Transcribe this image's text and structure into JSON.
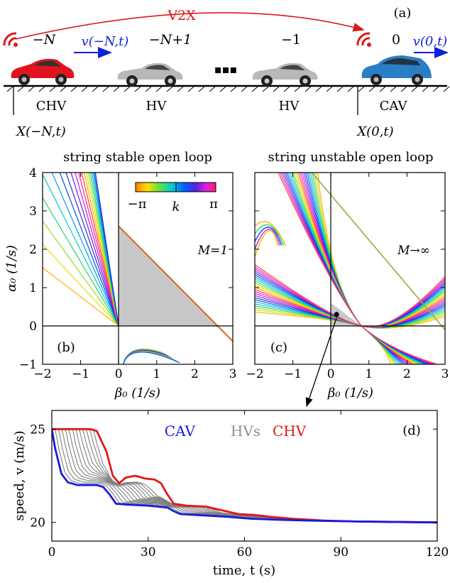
{
  "panel_a": {
    "label": "(a)",
    "v2x": "V2X",
    "vehicle_indices": [
      "−N",
      "−N+1",
      "−1",
      "0"
    ],
    "speed_left": "v(−N,t)",
    "speed_right": "v(0,t)",
    "types": [
      "CHV",
      "HV",
      "HV",
      "CAV"
    ],
    "pos_left": "X(−N,t)",
    "pos_right": "X(0,t)",
    "dots": "▪▪▪",
    "colors": {
      "chv": "#e0141e",
      "hv": "#a8a8a8",
      "cav": "#2a7ec6",
      "arrow": "#1020e0",
      "v2x": "#e01818"
    }
  },
  "panel_b": {
    "title": "string stable open loop",
    "label": "(b)",
    "annotation": "M=1",
    "colorbar": {
      "min": "−π",
      "mid": "k",
      "max": "π"
    },
    "xlabel": "β₀ (1/s)",
    "ylabel": "α₀ (1/s)",
    "xticks": [
      "−2",
      "−1",
      "0",
      "1",
      "2",
      "3"
    ],
    "yticks": [
      "−1",
      "0",
      "1",
      "2",
      "3",
      "4"
    ]
  },
  "panel_c": {
    "title": "string unstable open loop",
    "label": "(c)",
    "annotation": "M→∞",
    "xlabel": "β₀ (1/s)",
    "xticks": [
      "−2",
      "−1",
      "0",
      "1",
      "2",
      "3"
    ]
  },
  "panel_d": {
    "label": "(d)",
    "legend": [
      "CAV",
      "HVs",
      "CHV"
    ],
    "xlabel": "time, t (s)",
    "ylabel": "speed, v (m/s)",
    "xticks": [
      "0",
      "30",
      "60",
      "90",
      "120"
    ],
    "yticks": [
      "20",
      "25"
    ]
  },
  "chart_data": [
    {
      "type": "line",
      "title": "string stable open loop",
      "xlabel": "β₀ (1/s)",
      "ylabel": "α₀ (1/s)",
      "xlim": [
        -2,
        3
      ],
      "ylim": [
        -1,
        4
      ],
      "stable_region": {
        "vertices": [
          [
            0,
            0
          ],
          [
            0,
            2.6
          ],
          [
            2.6,
            0
          ]
        ],
        "fill": "#c8c8c8"
      },
      "boundary_line": {
        "x": [
          0,
          3
        ],
        "y": [
          2.6,
          -0.4
        ],
        "color": "#d2691e"
      }
    },
    {
      "type": "line",
      "title": "string unstable open loop",
      "xlabel": "β₀ (1/s)",
      "xlim": [
        -2,
        3
      ],
      "ylim": [
        -1,
        4
      ],
      "stable_region": {
        "vertices": [
          [
            0,
            0
          ],
          [
            0,
            0.6
          ],
          [
            0.8,
            0
          ]
        ],
        "fill": "#c8c8c8"
      },
      "marked_point": {
        "x": 0.15,
        "y": 0.3
      }
    },
    {
      "type": "line",
      "xlabel": "time, t (s)",
      "ylabel": "speed, v (m/s)",
      "xlim": [
        0,
        120
      ],
      "ylim": [
        19,
        26
      ],
      "series": [
        {
          "name": "CHV",
          "color": "#e01818",
          "t": [
            0,
            12,
            14,
            17,
            19,
            21,
            23,
            26,
            29,
            32,
            34,
            36,
            38,
            42,
            48,
            53,
            58,
            63,
            68,
            75,
            85,
            95,
            110,
            120
          ],
          "v": [
            25,
            25,
            24.9,
            23.8,
            22.5,
            22.1,
            22.4,
            22.5,
            22.35,
            22.3,
            22.1,
            21.5,
            21.0,
            20.9,
            20.85,
            20.65,
            20.45,
            20.4,
            20.3,
            20.2,
            20.1,
            20.05,
            20.02,
            20.0
          ]
        },
        {
          "name": "CAV",
          "color": "#1a1ae0",
          "t": [
            0,
            1,
            3,
            5,
            8,
            14,
            16,
            18,
            20,
            24,
            30,
            36,
            38,
            40,
            45,
            55,
            62,
            70,
            80,
            95,
            110,
            120
          ],
          "v": [
            25,
            24.0,
            22.6,
            22.15,
            22.0,
            22.0,
            21.9,
            21.5,
            21.0,
            20.95,
            20.9,
            20.8,
            20.6,
            20.45,
            20.4,
            20.3,
            20.2,
            20.15,
            20.1,
            20.05,
            20.02,
            20.0
          ]
        },
        {
          "name": "HVs",
          "color": "#808080",
          "count": 12
        }
      ]
    }
  ]
}
